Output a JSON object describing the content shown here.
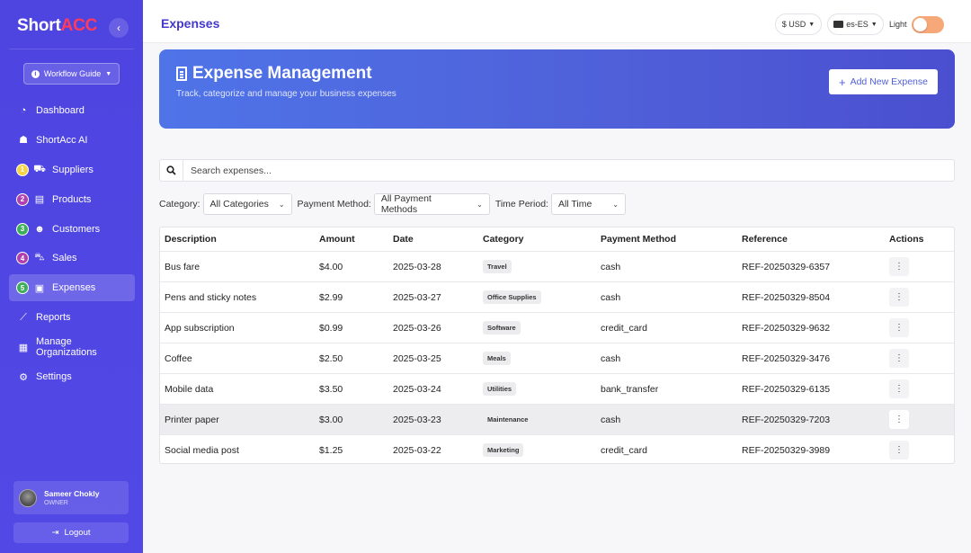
{
  "brand": {
    "part1": "Short",
    "part2": "ACC"
  },
  "sidebar": {
    "workflow_guide": "Workflow Guide",
    "items": [
      {
        "label": "Dashboard",
        "icon": "dashboard-icon",
        "glyph": "◔",
        "num": "",
        "num_color": ""
      },
      {
        "label": "ShortAcc AI",
        "icon": "robot-icon",
        "glyph": "☗",
        "num": "",
        "num_color": ""
      },
      {
        "label": "Suppliers",
        "icon": "truck-icon",
        "glyph": "⛟",
        "num": "1",
        "num_color": "#f5d547"
      },
      {
        "label": "Products",
        "icon": "box-icon",
        "glyph": "▤",
        "num": "2",
        "num_color": "#b03fb0"
      },
      {
        "label": "Customers",
        "icon": "users-icon",
        "glyph": "☻",
        "num": "3",
        "num_color": "#3fae5a"
      },
      {
        "label": "Sales",
        "icon": "cart-icon",
        "glyph": "⛍",
        "num": "4",
        "num_color": "#b03fb0"
      },
      {
        "label": "Expenses",
        "icon": "money-icon",
        "glyph": "▣",
        "num": "5",
        "num_color": "#3fae5a"
      },
      {
        "label": "Reports",
        "icon": "chart-line-icon",
        "glyph": "⟋",
        "num": "",
        "num_color": ""
      },
      {
        "label": "Manage Organizations",
        "icon": "building-icon",
        "glyph": "▦",
        "num": "",
        "num_color": ""
      },
      {
        "label": "Settings",
        "icon": "gear-icon",
        "glyph": "⚙",
        "num": "",
        "num_color": ""
      }
    ],
    "active_index": 6,
    "user": {
      "name": "Sameer Chokly",
      "role": "OWNER"
    },
    "logout": "Logout"
  },
  "header": {
    "title": "Expenses",
    "currency": "$ USD",
    "language": "es-ES",
    "theme_label": "Light"
  },
  "banner": {
    "title": "Expense Management",
    "subtitle": "Track, categorize and manage your business expenses",
    "add_button": "Add New Expense"
  },
  "search": {
    "placeholder": "Search expenses..."
  },
  "filters": {
    "category_label": "Category:",
    "category_value": "All Categories",
    "payment_label": "Payment Method:",
    "payment_value": "All Payment Methods",
    "period_label": "Time Period:",
    "period_value": "All Time"
  },
  "table": {
    "columns": [
      "Description",
      "Amount",
      "Date",
      "Category",
      "Payment Method",
      "Reference",
      "Actions"
    ],
    "rows": [
      {
        "description": "Bus fare",
        "amount": "$4.00",
        "date": "2025-03-28",
        "category": "Travel",
        "payment": "cash",
        "reference": "REF-20250329-6357"
      },
      {
        "description": "Pens and sticky notes",
        "amount": "$2.99",
        "date": "2025-03-27",
        "category": "Office Supplies",
        "payment": "cash",
        "reference": "REF-20250329-8504"
      },
      {
        "description": "App subscription",
        "amount": "$0.99",
        "date": "2025-03-26",
        "category": "Software",
        "payment": "credit_card",
        "reference": "REF-20250329-9632"
      },
      {
        "description": "Coffee",
        "amount": "$2.50",
        "date": "2025-03-25",
        "category": "Meals",
        "payment": "cash",
        "reference": "REF-20250329-3476"
      },
      {
        "description": "Mobile data",
        "amount": "$3.50",
        "date": "2025-03-24",
        "category": "Utilities",
        "payment": "bank_transfer",
        "reference": "REF-20250329-6135"
      },
      {
        "description": "Printer paper",
        "amount": "$3.00",
        "date": "2025-03-23",
        "category": "Maintenance",
        "payment": "cash",
        "reference": "REF-20250329-7203"
      },
      {
        "description": "Social media post",
        "amount": "$1.25",
        "date": "2025-03-22",
        "category": "Marketing",
        "payment": "credit_card",
        "reference": "REF-20250329-3989"
      }
    ],
    "highlighted_row": 5
  },
  "colors": {
    "sidebar": "#4f46e5",
    "accent": "#4338ca",
    "brand_red": "#ff3b5c",
    "toggle": "#f7a878"
  }
}
